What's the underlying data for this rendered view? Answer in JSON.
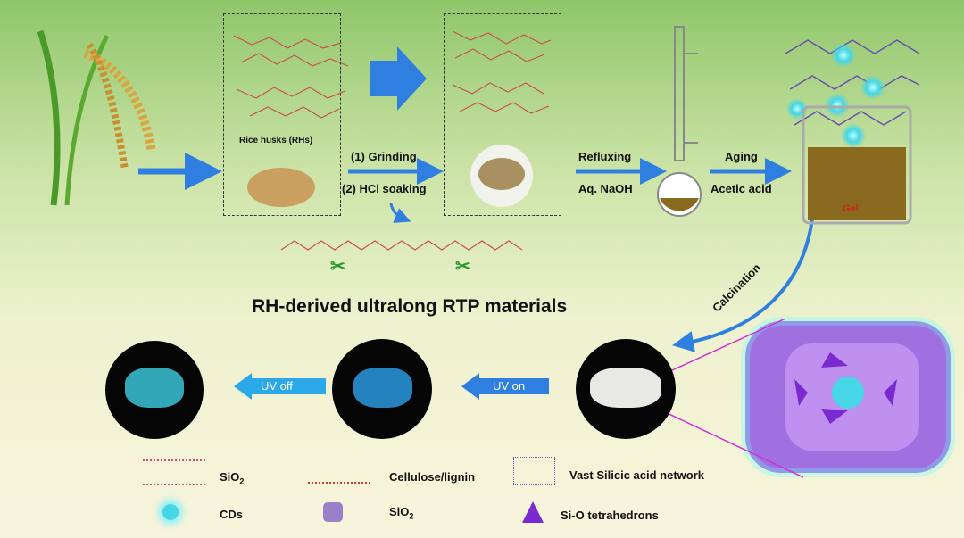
{
  "steps": {
    "rice_husks": "Rice husks (RHs)",
    "grinding": "(1) Grinding",
    "hcl": "(2) HCl soaking",
    "refluxing": "Refluxing",
    "naoh": "Aq. NaOH",
    "aging": "Aging",
    "acetic": "Acetic acid",
    "gel": "Gel",
    "calcination": "Calcination",
    "uv_on": "UV on",
    "uv_off": "UV off"
  },
  "title": "RH-derived ultralong RTP materials",
  "legend": [
    {
      "label": "SiO",
      "sub": "2",
      "icon": "sio2-structure-icon"
    },
    {
      "label": "Cellulose/lignin",
      "icon": "cellulose-icon"
    },
    {
      "label": "Vast Silicic acid network",
      "icon": "silicic-network-icon"
    },
    {
      "label": "CDs",
      "icon": "carbon-dot-icon"
    },
    {
      "label": "SiO",
      "sub": "2",
      "icon": "sio2-cube-icon"
    },
    {
      "label": "Si-O tetrahedrons",
      "icon": "tetrahedron-icon"
    }
  ],
  "colors": {
    "arrow": "#2f7fe0",
    "cd": "#46d6e6",
    "purple": "#a070e0",
    "gel": "#8a6a1e"
  }
}
